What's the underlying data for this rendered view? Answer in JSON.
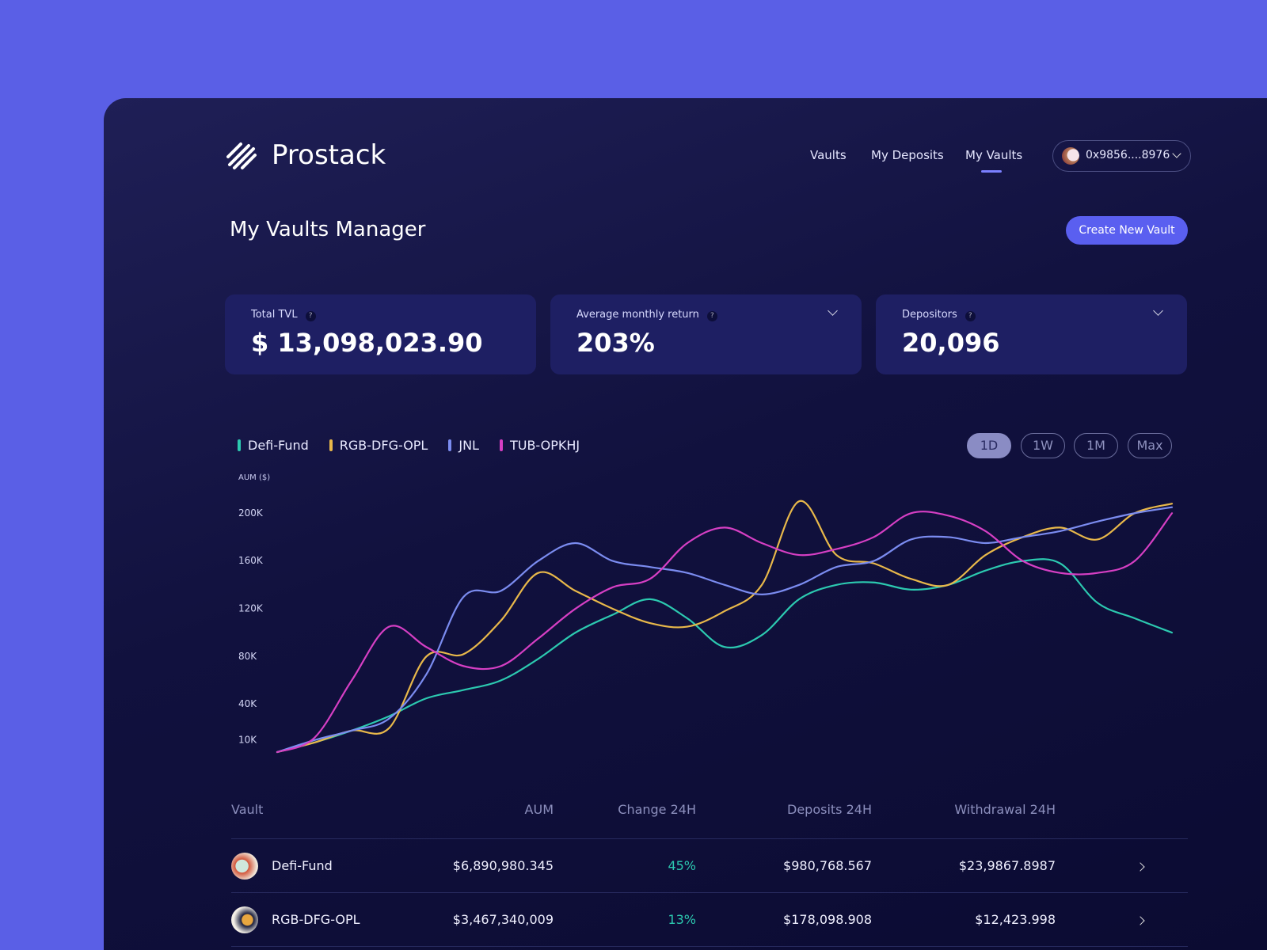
{
  "header": {
    "brand": "Prostack",
    "nav": [
      "Vaults",
      "My Deposits",
      "My Vaults"
    ],
    "wallet": "0x9856....8976"
  },
  "page_title": "My Vaults Manager",
  "create_button": "Create New Vault",
  "stats": [
    {
      "label": "Total TVL",
      "value": "$ 13,098,023.90"
    },
    {
      "label": "Average monthly return",
      "value": "203%"
    },
    {
      "label": "Depositors",
      "value": "20,096"
    }
  ],
  "range_buttons": [
    "1D",
    "1W",
    "1M",
    "Max"
  ],
  "chart_data": {
    "type": "line",
    "y_label": "AUM ($)",
    "ylim": [
      0,
      230000
    ],
    "yticks": [
      {
        "value": 10000,
        "label": "10K"
      },
      {
        "value": 40000,
        "label": "40K"
      },
      {
        "value": 80000,
        "label": "80K"
      },
      {
        "value": 120000,
        "label": "120K"
      },
      {
        "value": 160000,
        "label": "160K"
      },
      {
        "value": 200000,
        "label": "200K"
      }
    ],
    "series": [
      {
        "name": "Defi-Fund",
        "color": "#2cc9b0",
        "values": [
          0,
          8000,
          18000,
          30000,
          45000,
          52000,
          60000,
          78000,
          100000,
          115000,
          128000,
          112000,
          88000,
          98000,
          128000,
          140000,
          142000,
          136000,
          140000,
          152000,
          160000,
          158000,
          125000,
          112000,
          100000
        ]
      },
      {
        "name": "RGB-DFG-OPL",
        "color": "#e8b84a",
        "values": [
          0,
          8000,
          18000,
          20000,
          80000,
          82000,
          110000,
          150000,
          135000,
          120000,
          108000,
          105000,
          118000,
          140000,
          210000,
          165000,
          158000,
          145000,
          140000,
          165000,
          180000,
          188000,
          178000,
          200000,
          208000
        ]
      },
      {
        "name": "JNL",
        "color": "#7b8cf0",
        "values": [
          0,
          10000,
          18000,
          28000,
          65000,
          130000,
          135000,
          160000,
          175000,
          160000,
          155000,
          150000,
          140000,
          132000,
          140000,
          155000,
          160000,
          178000,
          180000,
          175000,
          180000,
          185000,
          193000,
          200000,
          205000
        ]
      },
      {
        "name": "TUB-OPKHJ",
        "color": "#d63fc4",
        "values": [
          0,
          12000,
          60000,
          105000,
          88000,
          72000,
          72000,
          95000,
          120000,
          138000,
          145000,
          175000,
          188000,
          175000,
          165000,
          170000,
          180000,
          200000,
          198000,
          185000,
          160000,
          150000,
          150000,
          160000,
          200000
        ]
      }
    ]
  },
  "table": {
    "columns": [
      "Vault",
      "AUM",
      "Change 24H",
      "Deposits 24H",
      "Withdrawal 24H"
    ],
    "rows": [
      [
        "Defi-Fund",
        "$6,890,980.345",
        "45%",
        "$980,768.567",
        "$23,9867.8987"
      ],
      [
        "RGB-DFG-OPL",
        "$3,467,340,009",
        "13%",
        "$178,098.908",
        "$12,423.998"
      ]
    ]
  }
}
